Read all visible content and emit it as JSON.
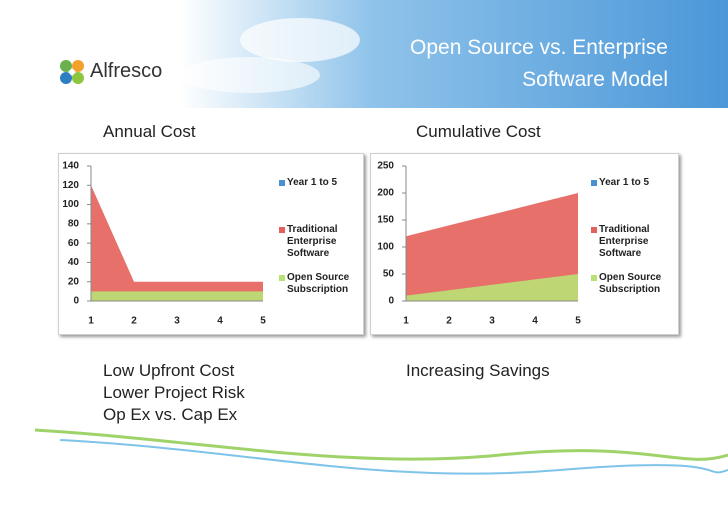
{
  "logo": "Alfresco",
  "title_lines": [
    "Open Source vs. Enterprise",
    "Software Model"
  ],
  "chart_data": [
    {
      "type": "area",
      "title": "Annual Cost",
      "categories": [
        "1",
        "2",
        "3",
        "4",
        "5"
      ],
      "series": [
        {
          "name": "Year 1 to 5",
          "color": "#4a90d0",
          "values": [
            null,
            null,
            null,
            null,
            null
          ]
        },
        {
          "name": "Traditional Enterprise Software",
          "color": "#e4605b",
          "values": [
            120,
            20,
            20,
            20,
            20
          ]
        },
        {
          "name": "Open Source Subscription",
          "color": "#b9e276",
          "values": [
            10,
            10,
            10,
            10,
            10
          ]
        }
      ],
      "ylim": [
        0,
        140
      ],
      "yticks": [
        0,
        20,
        40,
        60,
        80,
        100,
        120,
        140
      ]
    },
    {
      "type": "area",
      "title": "Cumulative Cost",
      "categories": [
        "1",
        "2",
        "3",
        "4",
        "5"
      ],
      "series": [
        {
          "name": "Year 1 to 5",
          "color": "#4a90d0",
          "values": [
            null,
            null,
            null,
            null,
            null
          ]
        },
        {
          "name": "Traditional Enterprise Software",
          "color": "#e4605b",
          "values": [
            120,
            140,
            160,
            180,
            200
          ]
        },
        {
          "name": "Open Source Subscription",
          "color": "#b9e276",
          "values": [
            10,
            20,
            30,
            40,
            50
          ]
        }
      ],
      "ylim": [
        0,
        250
      ],
      "yticks": [
        0,
        50,
        100,
        150,
        200,
        250
      ]
    }
  ],
  "bullets_left": [
    "Low Upfront Cost",
    "Lower Project Risk",
    "Op Ex vs. Cap Ex"
  ],
  "bullets_right": [
    "Increasing Savings"
  ]
}
